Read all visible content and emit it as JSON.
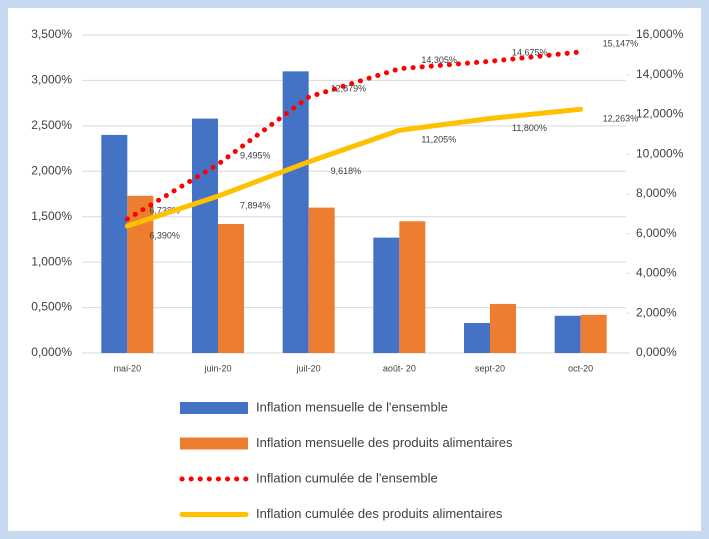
{
  "chart_data": {
    "type": "bar",
    "categories": [
      "mai-20",
      "juin-20",
      "juil-20",
      "août- 20",
      "sept-20",
      "oct-20"
    ],
    "series": [
      {
        "name": "Inflation mensuelle de l'ensemble",
        "type": "bar",
        "color": "#4472c4",
        "values": [
          2.4,
          2.58,
          3.1,
          1.27,
          0.33,
          0.41
        ]
      },
      {
        "name": "Inflation mensuelle des produits alimentaires",
        "type": "bar",
        "color": "#ed7d31",
        "values": [
          1.73,
          1.42,
          1.6,
          1.45,
          0.54,
          0.42
        ]
      },
      {
        "name": "Inflation cumulée de l'ensemble",
        "type": "line",
        "style": "dotted",
        "axis": "y2",
        "color": "#ff0000",
        "values": [
          6.738,
          9.495,
          12.879,
          14.305,
          14.675,
          15.147
        ],
        "value_labels": [
          "6,738%",
          "9,495%",
          "12,879%",
          "14,305%",
          "14,675%",
          "15,147%"
        ]
      },
      {
        "name": "Inflation cumulée des produits alimentaires",
        "type": "line",
        "style": "solid",
        "axis": "y2",
        "color": "#ffc000",
        "values": [
          6.39,
          7.894,
          9.618,
          11.205,
          11.8,
          12.263
        ],
        "value_labels": [
          "6,390%",
          "7,894%",
          "9,618%",
          "11,205%",
          "11,800%",
          "12,263%"
        ]
      }
    ],
    "ylim": [
      0,
      3.5
    ],
    "yticks": [
      {
        "value": 0,
        "label": "0,000%"
      },
      {
        "value": 0.5,
        "label": "0,500%"
      },
      {
        "value": 1,
        "label": "1,000%"
      },
      {
        "value": 1.5,
        "label": "1,500%"
      },
      {
        "value": 2,
        "label": "2,000%"
      },
      {
        "value": 2.5,
        "label": "2,500%"
      },
      {
        "value": 3,
        "label": "3,000%"
      },
      {
        "value": 3.5,
        "label": "3,500%"
      }
    ],
    "y2lim": [
      0,
      16
    ],
    "y2ticks": [
      {
        "value": 0,
        "label": "0,000%"
      },
      {
        "value": 2,
        "label": "2,000%"
      },
      {
        "value": 4,
        "label": "4,000%"
      },
      {
        "value": 6,
        "label": "6,000%"
      },
      {
        "value": 8,
        "label": "8,000%"
      },
      {
        "value": 10,
        "label": "10,000%"
      },
      {
        "value": 12,
        "label": "12,000%"
      },
      {
        "value": 14,
        "label": "14,000%"
      },
      {
        "value": 16,
        "label": "16,000%"
      }
    ],
    "grid": true,
    "legend": "bottom"
  }
}
